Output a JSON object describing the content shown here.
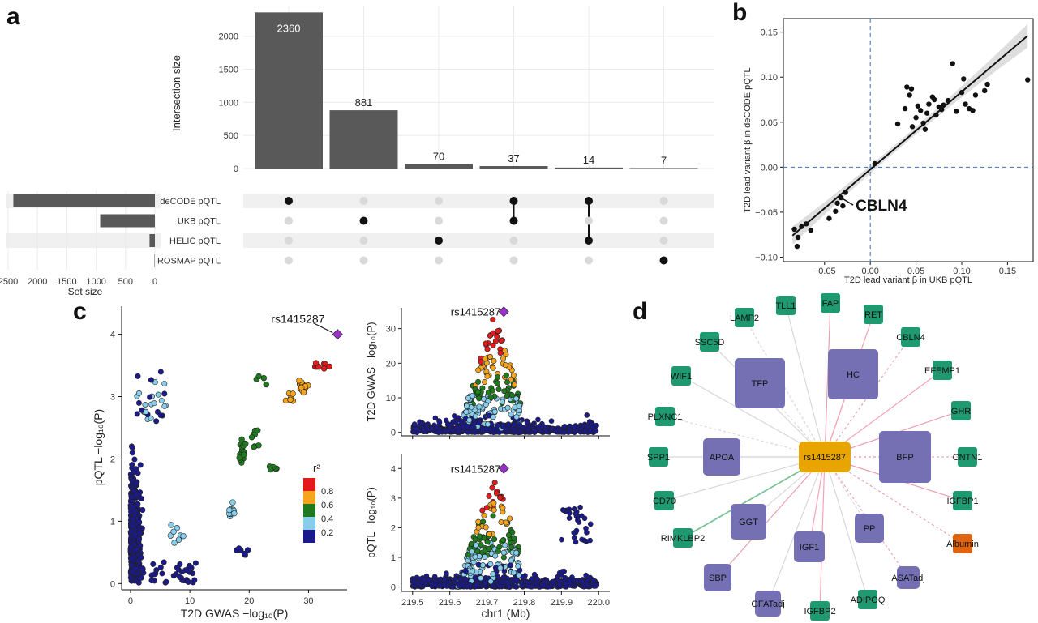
{
  "panel_letters": [
    "a",
    "b",
    "c",
    "d"
  ],
  "chart_data": [
    {
      "panel": "a",
      "type": "bar",
      "subtype": "upset",
      "ylabel": "Intersection size",
      "ylim": [
        0,
        2450
      ],
      "yticks": [
        0,
        500,
        1000,
        1500,
        2000
      ],
      "intersections": [
        {
          "value": 2360,
          "sets": [
            "deCODE pQTL"
          ]
        },
        {
          "value": 881,
          "sets": [
            "UKB pQTL"
          ]
        },
        {
          "value": 70,
          "sets": [
            "HELIC pQTL"
          ]
        },
        {
          "value": 37,
          "sets": [
            "deCODE pQTL",
            "UKB pQTL"
          ]
        },
        {
          "value": 14,
          "sets": [
            "deCODE pQTL",
            "HELIC pQTL"
          ]
        },
        {
          "value": 7,
          "sets": [
            "ROSMAP pQTL"
          ]
        }
      ],
      "set_names": [
        "deCODE pQTL",
        "UKB pQTL",
        "HELIC pQTL",
        "ROSMAP pQTL"
      ],
      "set_sizes": [
        2411,
        932,
        91,
        7
      ],
      "set_size_label": "Set size",
      "set_size_ticks": [
        2500,
        2000,
        1500,
        1000,
        500,
        0
      ],
      "colors": {
        "bar": "#595959",
        "dot_active": "#111111",
        "dot_inactive": "#d9d9d9",
        "band": "#f0f0f0"
      }
    },
    {
      "panel": "b",
      "type": "scatter",
      "xlabel": "T2D lead variant β in UKB pQTL",
      "ylabel": "T2D lead variant β in deCODE pQTL",
      "xlim": [
        -0.095,
        0.178
      ],
      "ylim": [
        -0.105,
        0.165
      ],
      "xticks": [
        -0.05,
        0,
        0.05,
        0.1,
        0.15
      ],
      "xtick_labels": [
        "−0.05",
        "0.00",
        "0.05",
        "0.10",
        "0.15"
      ],
      "yticks": [
        -0.1,
        -0.05,
        0,
        0.05,
        0.1,
        0.15
      ],
      "ytick_labels": [
        "−0.10",
        "−0.05",
        "0.00",
        "0.05",
        "0.10",
        "0.15"
      ],
      "fit_line": {
        "x": [
          -0.085,
          0.172
        ],
        "y": [
          -0.076,
          0.146
        ]
      },
      "annotation": {
        "text": "CBLN4",
        "x": -0.032,
        "y": -0.034
      },
      "points": [
        [
          -0.083,
          -0.069
        ],
        [
          -0.079,
          -0.078
        ],
        [
          -0.08,
          -0.088
        ],
        [
          -0.075,
          -0.066
        ],
        [
          -0.07,
          -0.063
        ],
        [
          -0.065,
          -0.07
        ],
        [
          -0.045,
          -0.057
        ],
        [
          -0.038,
          -0.049
        ],
        [
          -0.036,
          -0.04
        ],
        [
          -0.032,
          -0.034
        ],
        [
          -0.027,
          -0.028
        ],
        [
          -0.03,
          -0.043
        ],
        [
          0.03,
          0.048
        ],
        [
          0.038,
          0.065
        ],
        [
          0.04,
          0.089
        ],
        [
          0.043,
          0.08
        ],
        [
          0.045,
          0.087
        ],
        [
          0.046,
          0.045
        ],
        [
          0.05,
          0.055
        ],
        [
          0.052,
          0.068
        ],
        [
          0.055,
          0.063
        ],
        [
          0.058,
          0.049
        ],
        [
          0.06,
          0.042
        ],
        [
          0.062,
          0.06
        ],
        [
          0.064,
          0.07
        ],
        [
          0.068,
          0.078
        ],
        [
          0.07,
          0.075
        ],
        [
          0.072,
          0.058
        ],
        [
          0.075,
          0.067
        ],
        [
          0.078,
          0.064
        ],
        [
          0.08,
          0.069
        ],
        [
          0.085,
          0.074
        ],
        [
          0.09,
          0.115
        ],
        [
          0.094,
          0.062
        ],
        [
          0.1,
          0.083
        ],
        [
          0.102,
          0.098
        ],
        [
          0.104,
          0.07
        ],
        [
          0.108,
          0.065
        ],
        [
          0.112,
          0.063
        ],
        [
          0.115,
          0.08
        ],
        [
          0.125,
          0.085
        ],
        [
          0.128,
          0.092
        ],
        [
          0.172,
          0.097
        ],
        [
          0.005,
          0.004
        ]
      ]
    },
    {
      "panel": "c-left",
      "type": "scatter",
      "xlabel": "T2D GWAS −log₁₀(P)",
      "ylabel": "pQTL −log₁₀(P)",
      "xlim": [
        -1.5,
        36.5
      ],
      "ylim": [
        -0.1,
        4.45
      ],
      "xticks": [
        0,
        10,
        20,
        30
      ],
      "yticks": [
        0,
        1,
        2,
        3,
        4
      ],
      "lead_snp": {
        "label": "rs1415287",
        "x": 34.9,
        "y": 4.0
      },
      "legend": {
        "title": "r²",
        "breaks": [
          "0.8",
          "0.6",
          "0.4",
          "0.2"
        ]
      },
      "colors": {
        "r2_0.8": "#e41a1c",
        "r2_0.6": "#f7a41d",
        "r2_0.4": "#1f7a1f",
        "r2_0.2": "#87ceeb",
        "r2_0": "#1a1a8c",
        "lead": "#9932cc"
      }
    },
    {
      "panel": "c-top-right",
      "type": "scatter",
      "ylabel": "T2D GWAS −log₁₀(P)",
      "xlim": [
        219.47,
        220.03
      ],
      "ylim": [
        -1,
        36
      ],
      "yticks": [
        0,
        10,
        20,
        30
      ],
      "lead_snp": {
        "label": "rs1415287",
        "x": 219.745,
        "y": 34.9
      }
    },
    {
      "panel": "c-bottom-right",
      "type": "scatter",
      "xlabel": "chr1 (Mb)",
      "ylabel": "pQTL −log₁₀(P)",
      "xlim": [
        219.47,
        220.03
      ],
      "ylim": [
        -0.15,
        4.5
      ],
      "xticks": [
        219.5,
        219.6,
        219.7,
        219.8,
        219.9,
        220.0
      ],
      "xtick_labels": [
        "219.5",
        "219.6",
        "219.7",
        "219.8",
        "219.9",
        "220.0"
      ],
      "yticks": [
        0,
        1,
        2,
        3,
        4
      ],
      "lead_snp": {
        "label": "rs1415287",
        "x": 219.745,
        "y": 4.0
      }
    }
  ],
  "network": {
    "panel": "d",
    "center": "rs1415287",
    "colors": {
      "center": "#e8a500",
      "trait": "#7470b3",
      "protein": "#1e9970",
      "albumin": "#e0630f"
    },
    "traits": [
      "TFP",
      "HC",
      "APOA",
      "BFP",
      "GGT",
      "IGF1",
      "PP",
      "SBP",
      "GFATadj",
      "ASATadj"
    ],
    "proteins": [
      "TLL1",
      "FAP",
      "LAMP2",
      "RET",
      "SSC5D",
      "CBLN4",
      "WIF1",
      "EFEMP1",
      "PLXNC1",
      "GHR",
      "SPP1",
      "CNTN1",
      "CD70",
      "IGFBP1",
      "RIMKLBP2",
      "IGFBP2",
      "ADIPOQ"
    ],
    "other": [
      "Albumin"
    ]
  }
}
